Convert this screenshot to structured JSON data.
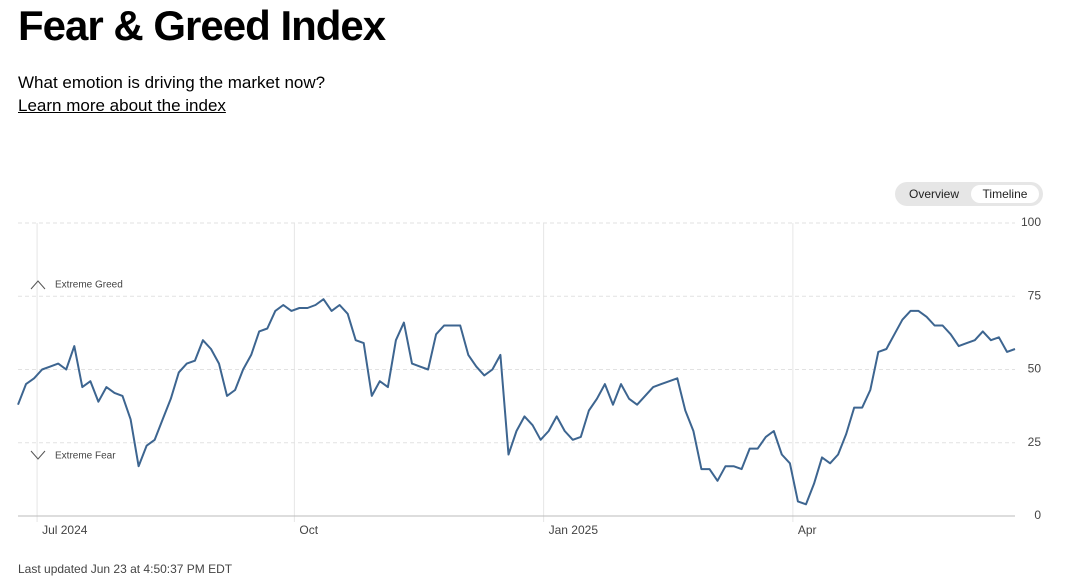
{
  "header": {
    "title": "Fear & Greed Index",
    "subtitle": "What emotion is driving the market now?",
    "link": "Learn more about the index"
  },
  "toggle": {
    "options": [
      "Overview",
      "Timeline"
    ],
    "selected": "Timeline"
  },
  "chart_data": {
    "type": "line",
    "categories": [
      null,
      null,
      "Jul 2024",
      null,
      null,
      null,
      null,
      null,
      null,
      null,
      null,
      null,
      null,
      null,
      null,
      null,
      null,
      null,
      null,
      null,
      null,
      null,
      null,
      null,
      null,
      null,
      null,
      null,
      null,
      null,
      null,
      null,
      null,
      null,
      "Oct",
      null,
      null,
      null,
      null,
      null,
      null,
      null,
      null,
      null,
      null,
      null,
      null,
      null,
      null,
      null,
      null,
      null,
      null,
      null,
      null,
      null,
      null,
      null,
      null,
      null,
      null,
      null,
      null,
      null,
      null,
      "Jan 2025",
      null,
      null,
      null,
      null,
      null,
      null,
      null,
      null,
      null,
      null,
      null,
      null,
      null,
      null,
      null,
      null,
      null,
      null,
      null,
      null,
      null,
      null,
      null,
      null,
      null,
      null,
      null,
      null,
      null,
      null,
      "Apr",
      null,
      null,
      null,
      null,
      null,
      null,
      null,
      null,
      null,
      null,
      null,
      null,
      null,
      null,
      null,
      null,
      null,
      null,
      null,
      null,
      null,
      null,
      null,
      null,
      null,
      null,
      null,
      null
    ],
    "values": [
      38,
      45,
      47,
      50,
      51,
      52,
      50,
      58,
      44,
      46,
      39,
      44,
      42,
      41,
      33,
      17,
      24,
      26,
      33,
      40,
      49,
      52,
      53,
      60,
      57,
      52,
      41,
      43,
      50,
      55,
      63,
      64,
      70,
      72,
      70,
      71,
      71,
      72,
      74,
      70,
      72,
      69,
      60,
      59,
      41,
      46,
      44,
      60,
      66,
      52,
      51,
      50,
      62,
      65,
      65,
      65,
      55,
      51,
      48,
      50,
      55,
      21,
      29,
      34,
      31,
      26,
      29,
      34,
      29,
      26,
      27,
      36,
      40,
      45,
      38,
      45,
      40,
      38,
      41,
      44,
      45,
      46,
      47,
      36,
      29,
      16,
      16,
      12,
      17,
      17,
      16,
      23,
      23,
      27,
      29,
      21,
      18,
      5,
      4,
      11,
      20,
      18,
      21,
      28,
      37,
      37,
      43,
      56,
      57,
      62,
      67,
      70,
      70,
      68,
      65,
      65,
      62,
      58,
      59,
      60,
      63,
      60,
      61,
      56,
      57
    ],
    "color": "#3d6590",
    "ylim": [
      0,
      100
    ],
    "yticks": [
      0,
      25,
      50,
      75,
      100
    ],
    "grid": true,
    "annotations": [
      "Extreme Greed",
      "Extreme Fear"
    ]
  },
  "footer": "Last updated Jun 23 at 4:50:37 PM EDT"
}
